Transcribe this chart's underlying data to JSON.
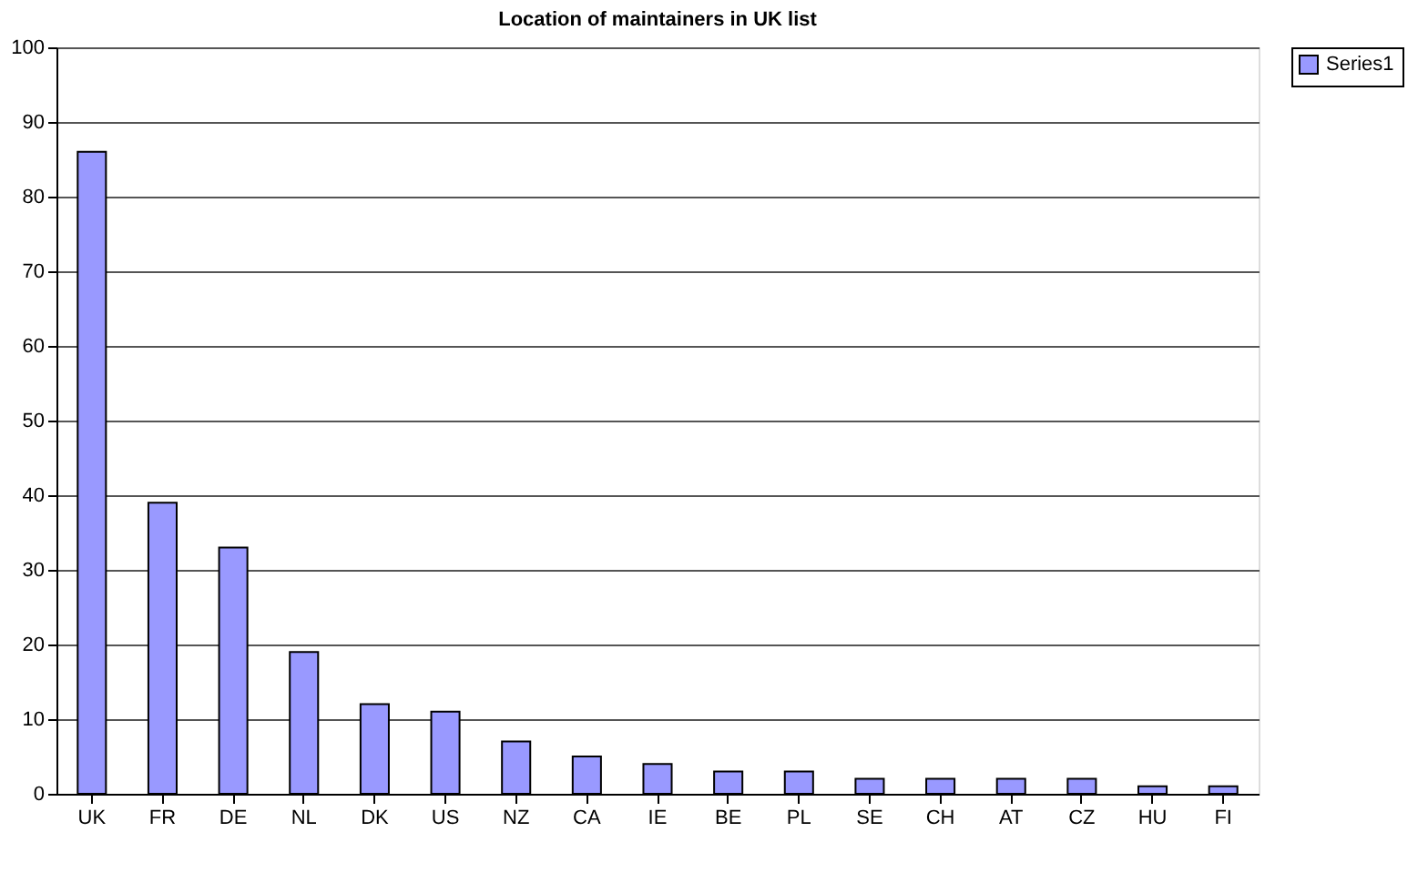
{
  "chart_data": {
    "type": "bar",
    "title": "Location of maintainers in UK list",
    "categories": [
      "UK",
      "FR",
      "DE",
      "NL",
      "DK",
      "US",
      "NZ",
      "CA",
      "IE",
      "BE",
      "PL",
      "SE",
      "CH",
      "AT",
      "CZ",
      "HU",
      "FI"
    ],
    "series": [
      {
        "name": "Series1",
        "color": "#9999ff",
        "values": [
          86,
          39,
          33,
          19,
          12,
          11,
          7,
          5,
          4,
          3,
          3,
          2,
          2,
          2,
          2,
          1,
          1
        ]
      }
    ],
    "ylim": [
      0,
      100
    ],
    "yticks": [
      0,
      10,
      20,
      30,
      40,
      50,
      60,
      70,
      80,
      90,
      100
    ],
    "grid": "y",
    "legend": "right"
  }
}
